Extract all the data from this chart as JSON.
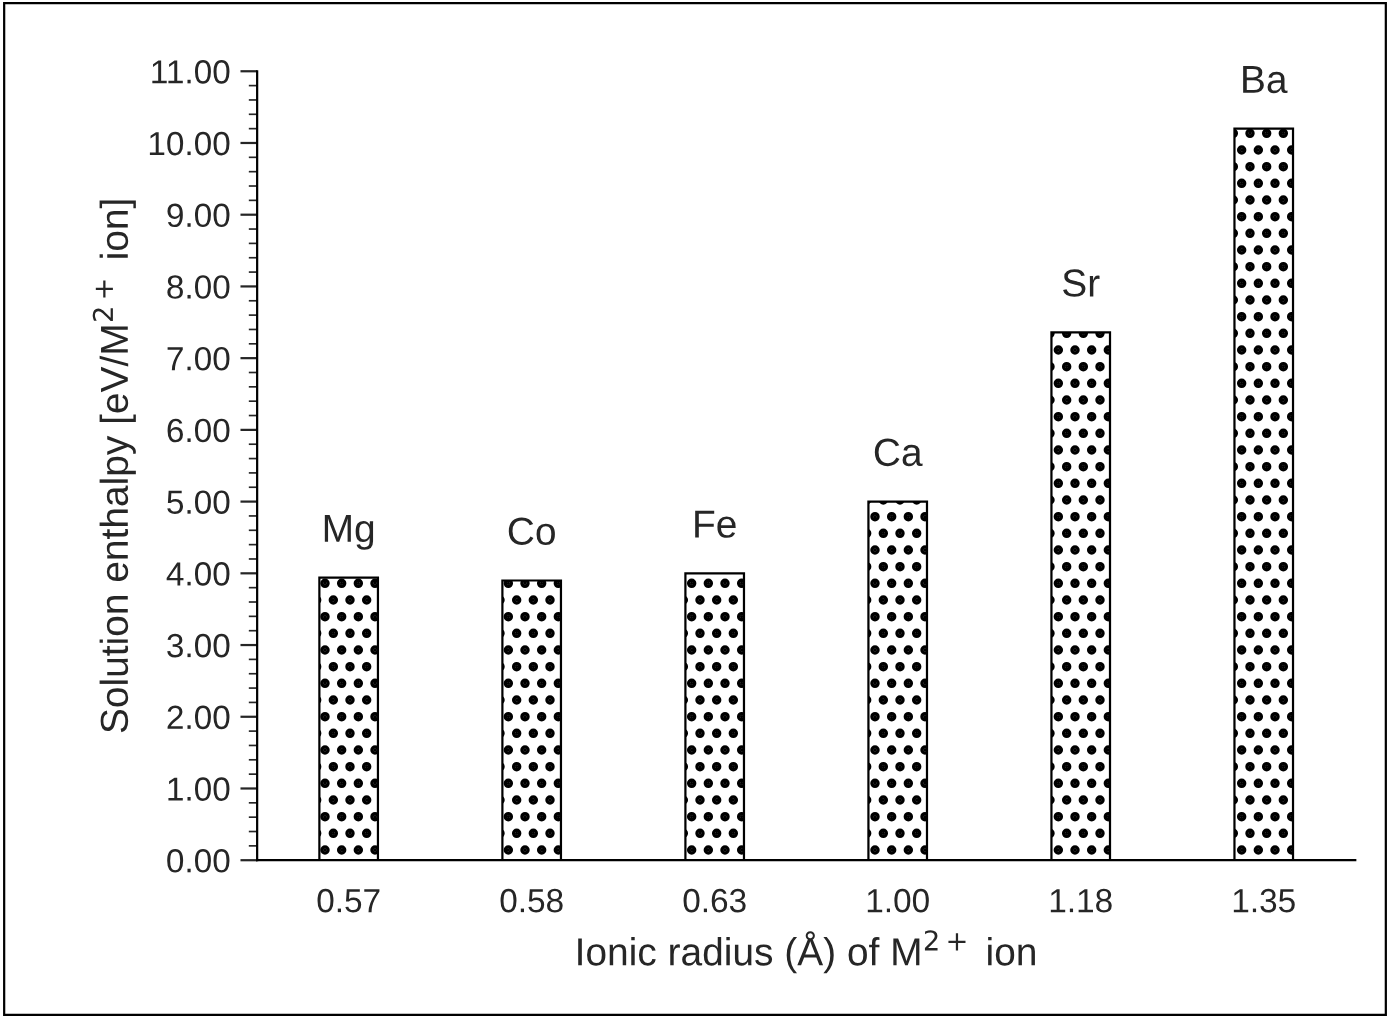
{
  "chart_data": {
    "type": "bar",
    "xlabel": "Ionic radius (Å) of M$^{2+}$ ion",
    "ylabel": "Solution enthalpy [eV/M$^{2+}$ ion]",
    "categories": [
      "0.57",
      "0.58",
      "0.63",
      "1.00",
      "1.18",
      "1.35"
    ],
    "values": [
      3.94,
      3.9,
      4.0,
      5.0,
      7.36,
      10.2
    ],
    "color": "#000000",
    "ylim": [
      0,
      11
    ],
    "yticks": [
      {
        "value": 0,
        "label": "0.00"
      },
      {
        "value": 1,
        "label": "1.00"
      },
      {
        "value": 2,
        "label": "2.00"
      },
      {
        "value": 3,
        "label": "3.00"
      },
      {
        "value": 4,
        "label": "4.00"
      },
      {
        "value": 5,
        "label": "5.00"
      },
      {
        "value": 6,
        "label": "6.00"
      },
      {
        "value": 7,
        "label": "7.00"
      },
      {
        "value": 8,
        "label": "8.00"
      },
      {
        "value": 9,
        "label": "9.00"
      },
      {
        "value": 10,
        "label": "10.00"
      },
      {
        "value": 11,
        "label": "11.00"
      }
    ],
    "annotations": [
      {
        "text": "Mg",
        "x": "0.57",
        "y": 3.94
      },
      {
        "text": "Co",
        "x": "0.58",
        "y": 3.9
      },
      {
        "text": "Fe",
        "x": "0.63",
        "y": 4.0
      },
      {
        "text": "Ca",
        "x": "1.00",
        "y": 5.0
      },
      {
        "text": "Sr",
        "x": "1.18",
        "y": 7.36
      },
      {
        "text": "Ba",
        "x": "1.35",
        "y": 10.2
      }
    ],
    "grid": false,
    "legend": false
  }
}
